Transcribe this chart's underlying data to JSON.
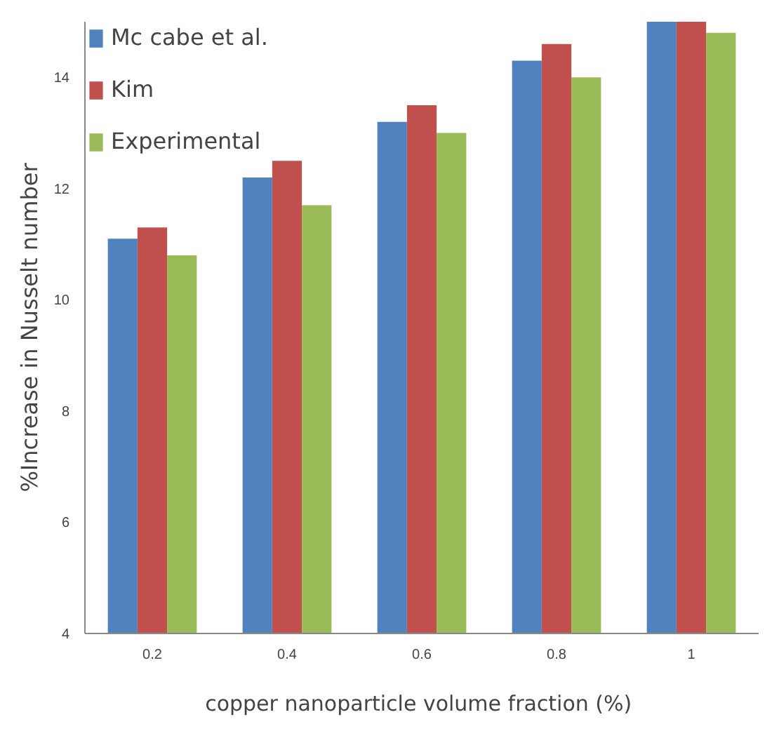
{
  "chart_data": {
    "type": "bar",
    "xlabel": "copper nanoparticle  volume fraction (%)",
    "ylabel": "%Increase in Nusselt number",
    "categories": [
      "0.2",
      "0.4",
      "0.6",
      "0.8",
      "1"
    ],
    "series": [
      {
        "name": "Mc cabe et al.",
        "color": "#4f81bd",
        "values": [
          11.1,
          12.2,
          13.2,
          14.3,
          15.0
        ]
      },
      {
        "name": "Kim",
        "color": "#c0504d",
        "values": [
          11.3,
          12.5,
          13.5,
          14.6,
          15.0
        ]
      },
      {
        "name": "Experimental",
        "color": "#9bbb59",
        "values": [
          10.8,
          11.7,
          13.0,
          14.0,
          14.8
        ]
      }
    ],
    "ylim": [
      4,
      15
    ],
    "yticks": [
      4,
      6,
      8,
      10,
      12,
      14
    ],
    "grid": false,
    "legend": "top left"
  }
}
